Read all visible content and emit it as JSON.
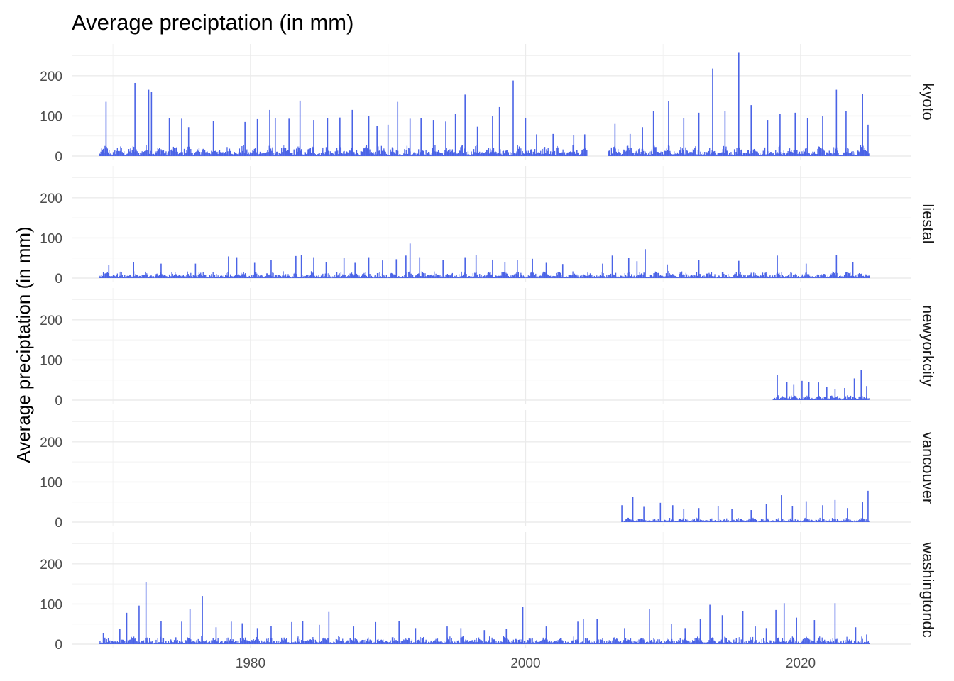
{
  "chart_data": {
    "type": "bar",
    "title": "Average preciptation (in mm)",
    "xlabel": "",
    "ylabel": "Average preciptation (in mm)",
    "facet_layout": "vertical-stack",
    "facet_label_position": "right",
    "grid": true,
    "legend": "none",
    "bar_color": "#4a63e6",
    "xlim": [
      1967,
      2028
    ],
    "ylim": [
      0,
      265
    ],
    "x_ticks": [
      1980,
      2000,
      2020
    ],
    "y_ticks": [
      0,
      100,
      200
    ],
    "x_values_note": "daily-like series, peaks listed below",
    "panels": [
      {
        "name": "kyoto",
        "ranges": [
          [
            1969,
            2004.5
          ],
          [
            2006,
            2025
          ]
        ],
        "base_max": 28,
        "peaks": [
          [
            1969.5,
            135
          ],
          [
            1971.6,
            182
          ],
          [
            1972.6,
            165
          ],
          [
            1972.8,
            160
          ],
          [
            1974.1,
            95
          ],
          [
            1975.0,
            93
          ],
          [
            1975.5,
            72
          ],
          [
            1977.3,
            87
          ],
          [
            1979.6,
            85
          ],
          [
            1980.5,
            92
          ],
          [
            1981.4,
            115
          ],
          [
            1981.8,
            95
          ],
          [
            1982.8,
            93
          ],
          [
            1983.6,
            138
          ],
          [
            1984.6,
            90
          ],
          [
            1985.6,
            95
          ],
          [
            1986.5,
            96
          ],
          [
            1987.4,
            115
          ],
          [
            1988.6,
            100
          ],
          [
            1989.2,
            75
          ],
          [
            1990.0,
            78
          ],
          [
            1990.7,
            135
          ],
          [
            1991.6,
            93
          ],
          [
            1992.4,
            95
          ],
          [
            1993.3,
            90
          ],
          [
            1994.2,
            86
          ],
          [
            1994.9,
            106
          ],
          [
            1995.6,
            153
          ],
          [
            1996.5,
            73
          ],
          [
            1997.6,
            100
          ],
          [
            1998.1,
            122
          ],
          [
            1999.1,
            188
          ],
          [
            2000.0,
            95
          ],
          [
            2000.8,
            54
          ],
          [
            2002.0,
            55
          ],
          [
            2003.5,
            52
          ],
          [
            2004.3,
            54
          ],
          [
            2006.5,
            80
          ],
          [
            2007.6,
            55
          ],
          [
            2008.5,
            72
          ],
          [
            2009.3,
            112
          ],
          [
            2010.4,
            137
          ],
          [
            2011.5,
            95
          ],
          [
            2012.6,
            108
          ],
          [
            2013.6,
            218
          ],
          [
            2014.5,
            112
          ],
          [
            2015.5,
            257
          ],
          [
            2016.4,
            127
          ],
          [
            2017.6,
            90
          ],
          [
            2018.5,
            105
          ],
          [
            2019.6,
            108
          ],
          [
            2020.5,
            94
          ],
          [
            2021.6,
            100
          ],
          [
            2022.6,
            165
          ],
          [
            2023.3,
            112
          ],
          [
            2024.5,
            155
          ],
          [
            2024.9,
            78
          ]
        ]
      },
      {
        "name": "liestal",
        "ranges": [
          [
            1969,
            2025
          ]
        ],
        "base_max": 18,
        "peaks": [
          [
            1969.7,
            32
          ],
          [
            1971.5,
            40
          ],
          [
            1973.5,
            36
          ],
          [
            1976.0,
            36
          ],
          [
            1978.4,
            54
          ],
          [
            1979.0,
            52
          ],
          [
            1980.3,
            38
          ],
          [
            1981.5,
            45
          ],
          [
            1983.3,
            55
          ],
          [
            1983.7,
            57
          ],
          [
            1984.6,
            52
          ],
          [
            1985.5,
            40
          ],
          [
            1986.8,
            50
          ],
          [
            1987.6,
            38
          ],
          [
            1988.6,
            52
          ],
          [
            1989.6,
            44
          ],
          [
            1990.6,
            47
          ],
          [
            1991.3,
            56
          ],
          [
            1991.6,
            86
          ],
          [
            1992.3,
            52
          ],
          [
            1994.0,
            45
          ],
          [
            1995.6,
            52
          ],
          [
            1996.4,
            58
          ],
          [
            1997.6,
            46
          ],
          [
            1998.5,
            40
          ],
          [
            1999.4,
            45
          ],
          [
            2000.5,
            48
          ],
          [
            2001.5,
            38
          ],
          [
            2002.7,
            35
          ],
          [
            2005.6,
            36
          ],
          [
            2006.3,
            56
          ],
          [
            2007.5,
            50
          ],
          [
            2008.1,
            42
          ],
          [
            2008.7,
            72
          ],
          [
            2010.3,
            34
          ],
          [
            2012.6,
            45
          ],
          [
            2015.5,
            43
          ],
          [
            2018.3,
            56
          ],
          [
            2020.4,
            36
          ],
          [
            2022.6,
            57
          ],
          [
            2023.8,
            40
          ]
        ]
      },
      {
        "name": "newyorkcity",
        "ranges": [
          [
            2018,
            2025
          ]
        ],
        "base_max": 15,
        "peaks": [
          [
            2018.3,
            63
          ],
          [
            2019.0,
            45
          ],
          [
            2019.5,
            38
          ],
          [
            2020.1,
            48
          ],
          [
            2020.6,
            45
          ],
          [
            2021.3,
            44
          ],
          [
            2021.9,
            32
          ],
          [
            2022.5,
            28
          ],
          [
            2023.2,
            30
          ],
          [
            2023.9,
            54
          ],
          [
            2024.4,
            75
          ],
          [
            2024.8,
            35
          ]
        ]
      },
      {
        "name": "vancouver",
        "ranges": [
          [
            2007,
            2025
          ]
        ],
        "base_max": 12,
        "peaks": [
          [
            2007.0,
            42
          ],
          [
            2007.8,
            62
          ],
          [
            2008.6,
            38
          ],
          [
            2009.8,
            48
          ],
          [
            2010.7,
            42
          ],
          [
            2011.5,
            33
          ],
          [
            2012.6,
            35
          ],
          [
            2014.0,
            40
          ],
          [
            2015.0,
            32
          ],
          [
            2016.4,
            30
          ],
          [
            2017.5,
            45
          ],
          [
            2018.6,
            67
          ],
          [
            2019.4,
            40
          ],
          [
            2020.4,
            52
          ],
          [
            2021.6,
            42
          ],
          [
            2022.5,
            55
          ],
          [
            2023.4,
            35
          ],
          [
            2024.5,
            50
          ],
          [
            2024.9,
            78
          ]
        ]
      },
      {
        "name": "washingtondc",
        "ranges": [
          [
            1969,
            2025
          ]
        ],
        "base_max": 20,
        "peaks": [
          [
            1969.3,
            28
          ],
          [
            1970.5,
            38
          ],
          [
            1971.0,
            78
          ],
          [
            1971.9,
            96
          ],
          [
            1972.4,
            155
          ],
          [
            1973.5,
            58
          ],
          [
            1975.0,
            56
          ],
          [
            1975.6,
            87
          ],
          [
            1976.5,
            120
          ],
          [
            1977.5,
            42
          ],
          [
            1978.6,
            56
          ],
          [
            1979.4,
            52
          ],
          [
            1980.5,
            40
          ],
          [
            1981.5,
            45
          ],
          [
            1983.0,
            55
          ],
          [
            1983.8,
            58
          ],
          [
            1985.0,
            48
          ],
          [
            1985.7,
            80
          ],
          [
            1987.5,
            44
          ],
          [
            1989.1,
            55
          ],
          [
            1990.8,
            58
          ],
          [
            1992.0,
            40
          ],
          [
            1994.3,
            44
          ],
          [
            1995.3,
            40
          ],
          [
            1997.0,
            35
          ],
          [
            1998.6,
            38
          ],
          [
            1999.8,
            93
          ],
          [
            2001.5,
            44
          ],
          [
            2003.8,
            56
          ],
          [
            2004.2,
            63
          ],
          [
            2005.2,
            62
          ],
          [
            2007.2,
            40
          ],
          [
            2009.0,
            88
          ],
          [
            2010.6,
            50
          ],
          [
            2011.6,
            40
          ],
          [
            2012.7,
            62
          ],
          [
            2013.4,
            98
          ],
          [
            2014.3,
            72
          ],
          [
            2015.8,
            82
          ],
          [
            2016.7,
            44
          ],
          [
            2017.5,
            40
          ],
          [
            2018.2,
            85
          ],
          [
            2018.8,
            102
          ],
          [
            2019.7,
            66
          ],
          [
            2021.0,
            60
          ],
          [
            2022.5,
            102
          ],
          [
            2024.0,
            42
          ],
          [
            2024.8,
            24
          ]
        ]
      }
    ]
  }
}
